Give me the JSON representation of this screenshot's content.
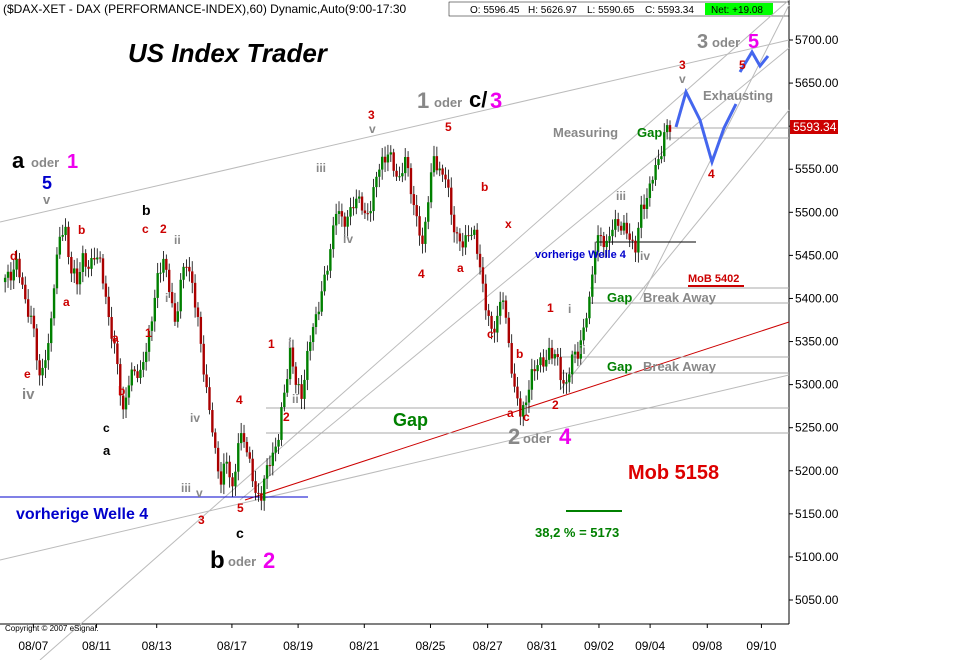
{
  "header": {
    "title": "($DAX-XET - DAX (PERFORMANCE-INDEX),60) Dynamic,Auto(9:00-17:30",
    "open": "O: 5596.45",
    "high": "H: 5626.97",
    "low": "L: 5590.65",
    "close": "C: 5593.34",
    "net": "Net: +19.08",
    "net_color": "#00ff00"
  },
  "copyright": "Copyright © 2007 eSignal.",
  "chart_data": {
    "type": "candlestick",
    "title": "US Index Trader",
    "ylim": [
      5020,
      5740
    ],
    "yticks": [
      5050,
      5100,
      5150,
      5200,
      5250,
      5300,
      5350,
      5400,
      5450,
      5500,
      5550,
      5600,
      5650,
      5700
    ],
    "ytick_labels": [
      "5050.00",
      "5100.00",
      "5150.00",
      "5200.00",
      "5250.00",
      "5300.00",
      "5350.00",
      "5400.00",
      "5450.00",
      "5500.00",
      "5550.00",
      "5600.00",
      "5650.00",
      "5700.00"
    ],
    "xticks": [
      "08/07",
      "08/11",
      "08/13",
      "08/17",
      "08/19",
      "08/21",
      "08/25",
      "08/27",
      "08/31",
      "09/02",
      "09/04",
      "09/08",
      "09/10"
    ],
    "last_price": "5593.34",
    "last_value": 5593.34,
    "up_color": "#008000",
    "down_color": "#aa0000",
    "path": [
      [
        0,
        5420
      ],
      [
        4,
        5440
      ],
      [
        7,
        5400
      ],
      [
        10,
        5360
      ],
      [
        12,
        5310
      ],
      [
        15,
        5340
      ],
      [
        17,
        5420
      ],
      [
        19,
        5470
      ],
      [
        21,
        5480
      ],
      [
        23,
        5430
      ],
      [
        25,
        5420
      ],
      [
        27,
        5450
      ],
      [
        29,
        5430
      ],
      [
        31,
        5455
      ],
      [
        33,
        5440
      ],
      [
        35,
        5400
      ],
      [
        37,
        5360
      ],
      [
        39,
        5320
      ],
      [
        41,
        5270
      ],
      [
        43,
        5300
      ],
      [
        45,
        5320
      ],
      [
        47,
        5310
      ],
      [
        49,
        5340
      ],
      [
        51,
        5380
      ],
      [
        53,
        5420
      ],
      [
        55,
        5450
      ],
      [
        57,
        5410
      ],
      [
        59,
        5370
      ],
      [
        61,
        5420
      ],
      [
        63,
        5440
      ],
      [
        65,
        5420
      ],
      [
        67,
        5370
      ],
      [
        69,
        5320
      ],
      [
        71,
        5270
      ],
      [
        73,
        5220
      ],
      [
        75,
        5190
      ],
      [
        77,
        5210
      ],
      [
        79,
        5180
      ],
      [
        81,
        5230
      ],
      [
        83,
        5240
      ],
      [
        85,
        5210
      ],
      [
        87,
        5170
      ],
      [
        89,
        5175
      ],
      [
        91,
        5200
      ],
      [
        93,
        5220
      ],
      [
        95,
        5240
      ],
      [
        97,
        5290
      ],
      [
        99,
        5340
      ],
      [
        101,
        5300
      ],
      [
        103,
        5290
      ],
      [
        105,
        5330
      ],
      [
        107,
        5370
      ],
      [
        109,
        5390
      ],
      [
        111,
        5420
      ],
      [
        113,
        5460
      ],
      [
        115,
        5500
      ],
      [
        117,
        5495
      ],
      [
        119,
        5490
      ],
      [
        121,
        5510
      ],
      [
        123,
        5520
      ],
      [
        125,
        5490
      ],
      [
        127,
        5510
      ],
      [
        129,
        5540
      ],
      [
        131,
        5560
      ],
      [
        133,
        5570
      ],
      [
        135,
        5550
      ],
      [
        137,
        5540
      ],
      [
        139,
        5560
      ],
      [
        141,
        5530
      ],
      [
        143,
        5490
      ],
      [
        145,
        5460
      ],
      [
        147,
        5520
      ],
      [
        149,
        5560
      ],
      [
        151,
        5550
      ],
      [
        153,
        5540
      ],
      [
        155,
        5500
      ],
      [
        157,
        5470
      ],
      [
        159,
        5460
      ],
      [
        161,
        5480
      ],
      [
        163,
        5470
      ],
      [
        165,
        5440
      ],
      [
        167,
        5390
      ],
      [
        169,
        5360
      ],
      [
        171,
        5380
      ],
      [
        173,
        5400
      ],
      [
        175,
        5350
      ],
      [
        177,
        5290
      ],
      [
        179,
        5270
      ],
      [
        181,
        5280
      ],
      [
        183,
        5310
      ],
      [
        185,
        5330
      ],
      [
        187,
        5320
      ],
      [
        189,
        5340
      ],
      [
        191,
        5335
      ],
      [
        193,
        5310
      ],
      [
        195,
        5300
      ],
      [
        197,
        5330
      ],
      [
        199,
        5340
      ],
      [
        201,
        5360
      ],
      [
        203,
        5400
      ],
      [
        205,
        5460
      ],
      [
        207,
        5470
      ],
      [
        209,
        5465
      ],
      [
        211,
        5480
      ],
      [
        213,
        5490
      ],
      [
        215,
        5480
      ],
      [
        217,
        5470
      ],
      [
        219,
        5460
      ],
      [
        221,
        5500
      ],
      [
        223,
        5520
      ],
      [
        225,
        5540
      ],
      [
        227,
        5560
      ],
      [
        229,
        5590
      ],
      [
        231,
        5600
      ]
    ],
    "n_bars": 232,
    "x_label_positions": [
      8,
      29,
      49,
      74,
      96,
      118,
      140,
      159,
      177,
      196,
      213,
      232,
      250
    ]
  },
  "annotations": {
    "waves": {
      "a_oder_1": "a",
      "oder_1_small": "oder",
      "oder_1_num": "1",
      "five_blue": "5",
      "v_small": "v",
      "iv_left": "iv",
      "e_left": "e",
      "d_left": "d",
      "a_left": "a",
      "b_left1": "b",
      "c_left1": "c",
      "b_left_black": "b",
      "a_black": "a",
      "c_black": "c",
      "b_left2": "b",
      "a_left2": "a",
      "c_left2": "c",
      "two_left": "2",
      "ii_left": "ii",
      "i_left": "i",
      "one_left": "1",
      "iv_mid": "iv",
      "iii_mid": "iii",
      "v_mid": "v",
      "three_mid": "3",
      "five_mid": "5",
      "one_up": "1",
      "i_up": "i",
      "ii_up": "ii",
      "two_up": "2",
      "four_up": "4",
      "iii_up": "iii",
      "iv_up2": "iv",
      "three_top": "3",
      "v_top": "v",
      "five_top": "5",
      "four_top": "4",
      "a_top": "a",
      "b_mid": "b",
      "x_mid": "x",
      "c_mid": "c",
      "a_bot": "a",
      "b_bot": "b",
      "c_bot": "c",
      "two_bot": "2",
      "one_r": "1",
      "i_r": "i",
      "ii_r": "ii",
      "iii_r": "iii",
      "iv_r": "iv",
      "three_r": "3",
      "v_r": "v",
      "five_r": "5",
      "four_r": "4"
    },
    "labels": {
      "one_oder_c3_1": "1",
      "one_oder_c3_oder": "oder",
      "one_oder_c3_c": "c/",
      "one_oder_c3_3": "3",
      "three_oder_5_3": "3",
      "three_oder_5_oder": "oder",
      "three_oder_5_5": "5",
      "two_oder_4_2": "2",
      "two_oder_4_oder": "oder",
      "two_oder_4_4": "4",
      "b_oder_2_b": "b",
      "b_oder_2_oder": "oder",
      "b_oder_2_2": "2",
      "measuring": "Measuring",
      "gap_measuring": "Gap",
      "exhausting": "Exhausting",
      "vorherige_welle_4_right": "vorherige Welle 4",
      "vorherige_welle_4_left": "vorherige Welle 4",
      "mob_5402": "MoB 5402",
      "gap1": "Gap",
      "break_away1": "Break Away",
      "gap2": "Gap",
      "break_away2": "Break Away",
      "gap_center": "Gap",
      "mob_5158": "Mob 5158",
      "fib": "38,2 % = 5173"
    }
  }
}
